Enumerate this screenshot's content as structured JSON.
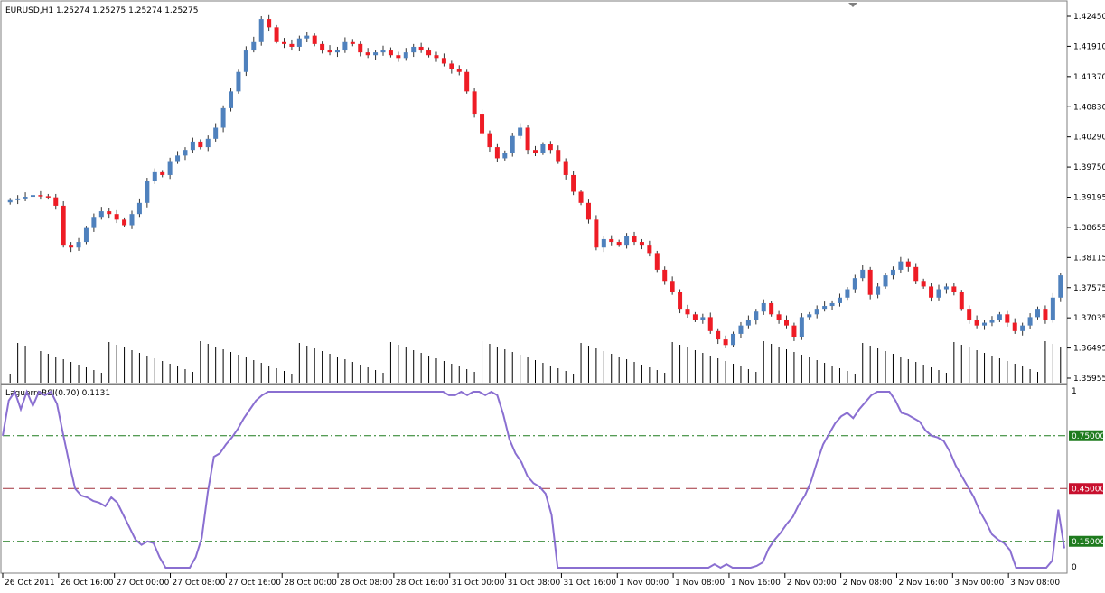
{
  "main_chart": {
    "title": "EURUSD,H1  1.25274 1.25275 1.25274 1.25275",
    "price_axis_labels": [
      "1.42450",
      "1.41910",
      "1.41370",
      "1.40830",
      "1.40290",
      "1.39750",
      "1.39195",
      "1.38655",
      "1.38115",
      "1.37575",
      "1.37035",
      "1.36495",
      "1.35955"
    ],
    "time_axis_labels": [
      "26 Oct 2011",
      "26 Oct 16:00",
      "27 Oct 00:00",
      "27 Oct 08:00",
      "27 Oct 16:00",
      "28 Oct 00:00",
      "28 Oct 08:00",
      "28 Oct 16:00",
      "31 Oct 00:00",
      "31 Oct 08:00",
      "31 Oct 16:00",
      "1 Nov 00:00",
      "1 Nov 08:00",
      "1 Nov 16:00",
      "2 Nov 00:00",
      "2 Nov 08:00",
      "2 Nov 16:00",
      "3 Nov 00:00",
      "3 Nov 08:00"
    ]
  },
  "indicator": {
    "title": "LaguerreRSI(0.70) 0.1131",
    "axis_top": "1",
    "axis_bottom": "0",
    "levels": [
      {
        "label": "0.75000",
        "color": "#1e7b1e"
      },
      {
        "label": "0.45000",
        "color": "#c8102e"
      },
      {
        "label": "0.15000",
        "color": "#1e7b1e"
      }
    ]
  },
  "colors": {
    "bull": "#4f81bd",
    "bear": "#ee1c25",
    "wick": "#333333",
    "volume": "#000000",
    "rsi_line": "#8a6fd1",
    "level_green": "#1e7b1e",
    "level_red": "#a0303a",
    "border": "#7f7f7f"
  },
  "chart_data": [
    {
      "type": "candlestick",
      "title": "EURUSD,H1  1.25274 1.25275 1.25274 1.25275",
      "ylim": [
        1.35955,
        1.4245
      ],
      "x": [
        "26 Oct 2011",
        "26 Oct 16:00",
        "27 Oct 00:00",
        "27 Oct 08:00",
        "27 Oct 16:00",
        "28 Oct 00:00",
        "28 Oct 08:00",
        "28 Oct 16:00",
        "31 Oct 00:00",
        "31 Oct 08:00",
        "31 Oct 16:00",
        "1 Nov 00:00",
        "1 Nov 08:00",
        "1 Nov 16:00",
        "2 Nov 00:00",
        "2 Nov 08:00",
        "2 Nov 16:00",
        "3 Nov 00:00",
        "3 Nov 08:00"
      ],
      "close_series": [
        1.3915,
        1.3918,
        1.3921,
        1.3924,
        1.3922,
        1.392,
        1.3905,
        1.3835,
        1.383,
        1.384,
        1.3865,
        1.3885,
        1.3895,
        1.389,
        1.388,
        1.387,
        1.389,
        1.391,
        1.395,
        1.3965,
        1.396,
        1.3985,
        1.3995,
        1.4005,
        1.402,
        1.401,
        1.4025,
        1.4045,
        1.408,
        1.411,
        1.4145,
        1.4185,
        1.42,
        1.424,
        1.4225,
        1.42,
        1.4195,
        1.419,
        1.4205,
        1.421,
        1.4195,
        1.4185,
        1.418,
        1.4185,
        1.42,
        1.4195,
        1.418,
        1.4175,
        1.418,
        1.4185,
        1.4175,
        1.417,
        1.418,
        1.419,
        1.4185,
        1.4175,
        1.417,
        1.416,
        1.415,
        1.4145,
        1.411,
        1.407,
        1.4035,
        1.401,
        1.399,
        1.4,
        1.403,
        1.4045,
        1.4005,
        1.4,
        1.4015,
        1.4005,
        1.3985,
        1.396,
        1.393,
        1.391,
        1.388,
        1.383,
        1.3845,
        1.384,
        1.3835,
        1.385,
        1.384,
        1.3835,
        1.382,
        1.379,
        1.377,
        1.375,
        1.372,
        1.371,
        1.37,
        1.3705,
        1.368,
        1.3665,
        1.3655,
        1.3675,
        1.369,
        1.37,
        1.3715,
        1.373,
        1.371,
        1.37,
        1.369,
        1.367,
        1.3705,
        1.371,
        1.372,
        1.3725,
        1.373,
        1.374,
        1.3755,
        1.3775,
        1.379,
        1.3745,
        1.376,
        1.378,
        1.379,
        1.3805,
        1.3795,
        1.377,
        1.376,
        1.374,
        1.3755,
        1.376,
        1.375,
        1.372,
        1.37,
        1.369,
        1.3695,
        1.37,
        1.371,
        1.3695,
        1.368,
        1.369,
        1.3705,
        1.372,
        1.37,
        1.374,
        1.378
      ]
    },
    {
      "type": "line",
      "title": "LaguerreRSI(0.70) 0.1131",
      "ylim": [
        0,
        1
      ],
      "values": [
        0.75,
        0.95,
        1.0,
        0.9,
        1.0,
        0.92,
        1.0,
        0.98,
        1.0,
        0.93,
        0.76,
        0.6,
        0.45,
        0.41,
        0.4,
        0.38,
        0.37,
        0.35,
        0.4,
        0.37,
        0.3,
        0.23,
        0.16,
        0.13,
        0.15,
        0.14,
        0.06,
        0.0,
        0.0,
        0.0,
        0.0,
        0.0,
        0.06,
        0.17,
        0.43,
        0.63,
        0.65,
        0.7,
        0.74,
        0.79,
        0.85,
        0.9,
        0.95,
        0.98,
        1.0,
        1.0,
        1.0,
        1.0,
        1.0,
        1.0,
        1.0,
        1.0,
        1.0,
        1.0,
        1.0,
        1.0,
        1.0,
        1.0,
        1.0,
        1.0,
        1.0,
        1.0,
        1.0,
        1.0,
        1.0,
        1.0,
        1.0,
        1.0,
        1.0,
        1.0,
        1.0,
        1.0,
        1.0,
        1.0,
        0.98,
        0.98,
        1.0,
        0.98,
        1.0,
        1.0,
        0.98,
        1.0,
        0.98,
        0.87,
        0.73,
        0.65,
        0.6,
        0.52,
        0.48,
        0.46,
        0.42,
        0.3,
        0.0,
        0.0,
        0.0,
        0.0,
        0.0,
        0.0,
        0.0,
        0.0,
        0.0,
        0.0,
        0.0,
        0.0,
        0.0,
        0.0,
        0.0,
        0.0,
        0.0,
        0.0,
        0.0,
        0.0,
        0.0,
        0.0,
        0.0,
        0.0,
        0.0,
        0.0,
        0.02,
        0.0,
        0.02,
        0.0,
        0.0,
        0.0,
        0.0,
        0.01,
        0.03,
        0.11,
        0.16,
        0.2,
        0.25,
        0.29,
        0.36,
        0.41,
        0.49,
        0.6,
        0.7,
        0.76,
        0.82,
        0.86,
        0.88,
        0.85,
        0.9,
        0.94,
        0.98,
        1.0,
        1.0,
        1.0,
        0.95,
        0.88,
        0.87,
        0.85,
        0.83,
        0.78,
        0.75,
        0.74,
        0.72,
        0.66,
        0.58,
        0.52,
        0.46,
        0.4,
        0.32,
        0.26,
        0.19,
        0.16,
        0.14,
        0.1,
        0.0,
        0.0,
        0.0,
        0.0,
        0.0,
        0.0,
        0.04,
        0.33,
        0.11
      ],
      "levels": [
        0.75,
        0.45,
        0.15
      ]
    }
  ]
}
